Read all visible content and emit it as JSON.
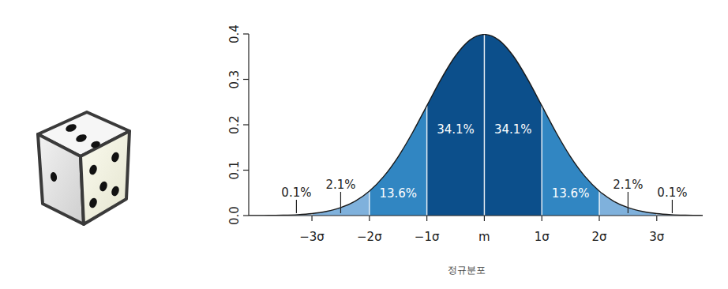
{
  "chart_data": {
    "type": "area",
    "x_label": "정규분포",
    "x": [
      -4.1,
      -4,
      -3.75,
      -3.5,
      -3.25,
      -3,
      -2.75,
      -2.5,
      -2.25,
      -2,
      -1.75,
      -1.5,
      -1.25,
      -1,
      -0.75,
      -0.5,
      -0.25,
      0,
      0.25,
      0.5,
      0.75,
      1,
      1.25,
      1.5,
      1.75,
      2,
      2.25,
      2.5,
      2.75,
      3,
      3.25,
      3.5,
      3.75,
      3.8
    ],
    "values": [
      0.0001,
      0.0001,
      0.0004,
      0.0009,
      0.002,
      0.0044,
      0.0091,
      0.0175,
      0.0317,
      0.054,
      0.0863,
      0.1295,
      0.1826,
      0.242,
      0.3011,
      0.3521,
      0.3867,
      0.3989,
      0.3867,
      0.3521,
      0.3011,
      0.242,
      0.1826,
      0.1295,
      0.0863,
      0.054,
      0.0317,
      0.0175,
      0.0091,
      0.0044,
      0.002,
      0.0009,
      0.0004,
      0.0003
    ],
    "xlim": [
      -4.1,
      3.8
    ],
    "ylim": [
      0,
      0.4
    ],
    "xticks": [
      {
        "value": -3,
        "label": "−3σ"
      },
      {
        "value": -2,
        "label": "−2σ"
      },
      {
        "value": -1,
        "label": "−1σ"
      },
      {
        "value": 0,
        "label": "m"
      },
      {
        "value": 1,
        "label": "1σ"
      },
      {
        "value": 2,
        "label": "2σ"
      },
      {
        "value": 3,
        "label": "3σ"
      }
    ],
    "yticks": [
      {
        "value": 0,
        "label": "0.0"
      },
      0.1,
      0.2,
      0.3,
      0.4
    ],
    "regions": {
      "bins": [
        -4.1,
        -3,
        -2,
        -1,
        0,
        1,
        2,
        3,
        3.8
      ],
      "values": [
        0.1,
        2.1,
        13.6,
        34.1,
        34.1,
        13.6,
        2.1,
        0.1
      ],
      "value_labels": [
        "0.1%",
        "2.1%",
        "13.6%",
        "34.1%",
        "34.1%",
        "13.6%",
        "2.1%",
        "0.1%"
      ],
      "colors": [
        "#a9c9e6",
        "#7fb1dc",
        "#3186c2",
        "#0c4f8b",
        "#0c4f8b",
        "#3186c2",
        "#7fb1dc",
        "#a9c9e6"
      ]
    },
    "data_labels": true,
    "grid": false,
    "tick_labels": true
  }
}
